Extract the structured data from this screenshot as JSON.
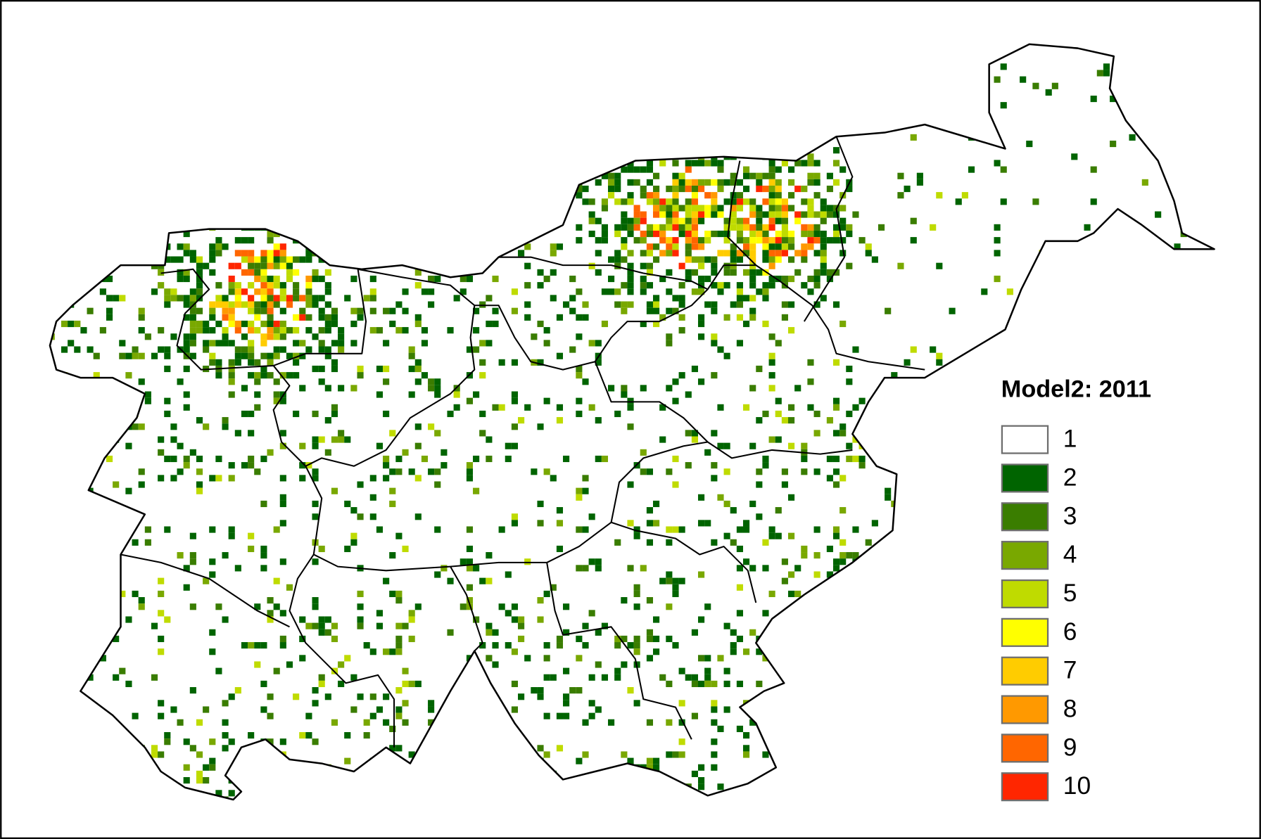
{
  "legend": {
    "title": "Model2: 2011",
    "items": [
      {
        "label": "1",
        "color": "#ffffff"
      },
      {
        "label": "2",
        "color": "#006400"
      },
      {
        "label": "3",
        "color": "#3a7d00"
      },
      {
        "label": "4",
        "color": "#79a800"
      },
      {
        "label": "5",
        "color": "#bfdb00"
      },
      {
        "label": "6",
        "color": "#ffff00"
      },
      {
        "label": "7",
        "color": "#ffcc00"
      },
      {
        "label": "8",
        "color": "#ff9900"
      },
      {
        "label": "9",
        "color": "#ff6600"
      },
      {
        "label": "10",
        "color": "#ff2600"
      }
    ]
  }
}
